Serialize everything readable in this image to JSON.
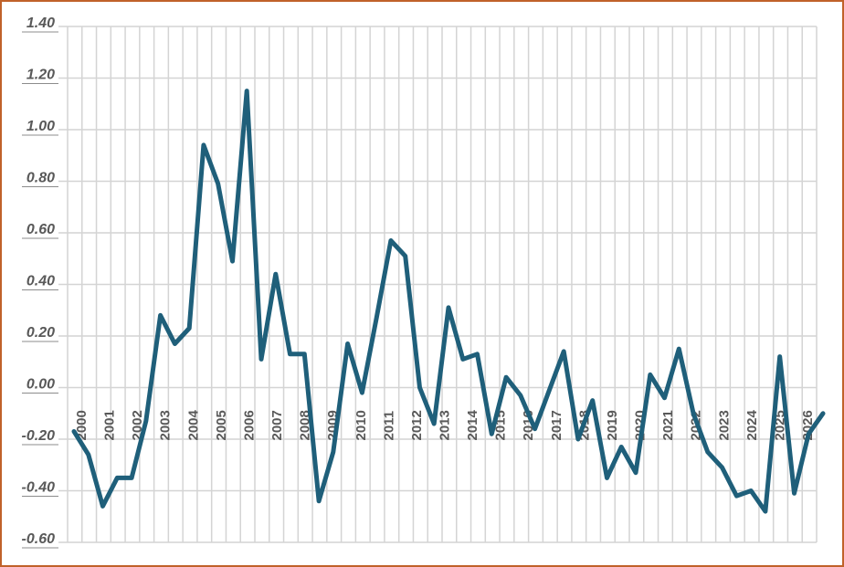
{
  "chart_data": {
    "type": "line",
    "title": "",
    "xlabel": "",
    "ylabel": "",
    "ylim": [
      -0.6,
      1.4
    ],
    "y_ticks": [
      "1.40",
      "1.20",
      "1.00",
      "0.80",
      "0.60",
      "0.40",
      "0.20",
      "0.00",
      "-0.20",
      "-0.40",
      "-0.60"
    ],
    "x_tick_labels": [
      "2000",
      "2001",
      "2002",
      "2003",
      "2004",
      "2005",
      "2006",
      "2007",
      "2008",
      "2009",
      "2010",
      "2011",
      "2012",
      "2013",
      "2014",
      "2015",
      "2016",
      "2017",
      "2018",
      "2019",
      "2020",
      "2021",
      "2022",
      "2023",
      "2024",
      "2025",
      "2026"
    ],
    "grid": true,
    "line_color": "#1f5f7a",
    "series": [
      {
        "values": [
          -0.17,
          -0.26,
          -0.46,
          -0.35,
          -0.35,
          -0.13,
          0.28,
          0.17,
          0.23,
          0.94,
          0.79,
          0.49,
          1.15,
          0.11,
          0.44,
          0.13,
          0.13,
          -0.44,
          -0.25,
          0.17,
          -0.02,
          0.27,
          0.57,
          0.51,
          0.0,
          -0.14,
          0.31,
          0.11,
          0.13,
          -0.18,
          0.04,
          -0.03,
          -0.16,
          -0.01,
          0.14,
          -0.2,
          -0.05,
          -0.35,
          -0.23,
          -0.33,
          0.05,
          -0.04,
          0.15,
          -0.1,
          -0.25,
          -0.31,
          -0.42,
          -0.4,
          -0.48,
          0.12,
          -0.41,
          -0.18,
          -0.1
        ]
      }
    ]
  }
}
